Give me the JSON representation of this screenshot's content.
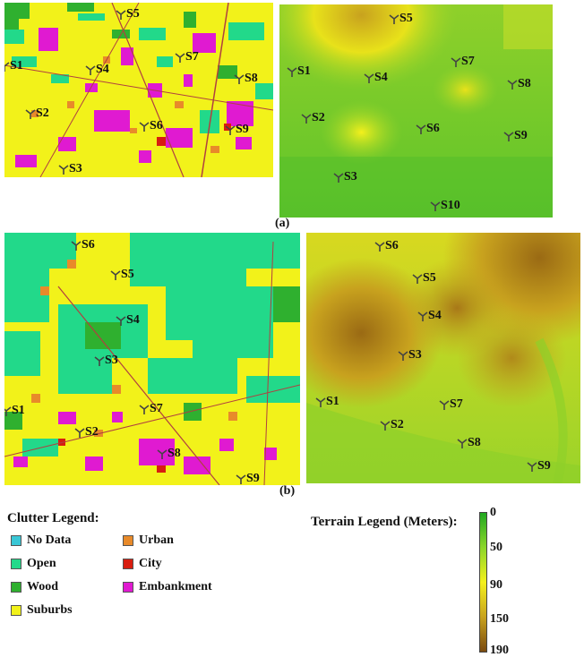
{
  "figure_labels": {
    "a": "(a)",
    "b": "(b)"
  },
  "panels": {
    "clutter_a": {
      "sites": [
        {
          "label": "S5"
        },
        {
          "label": "S1"
        },
        {
          "label": "S4"
        },
        {
          "label": "S7"
        },
        {
          "label": "S8"
        },
        {
          "label": "S2"
        },
        {
          "label": "S6"
        },
        {
          "label": "S9"
        },
        {
          "label": "S3"
        }
      ]
    },
    "terrain_a": {
      "sites": [
        {
          "label": "S5"
        },
        {
          "label": "S1"
        },
        {
          "label": "S4"
        },
        {
          "label": "S7"
        },
        {
          "label": "S8"
        },
        {
          "label": "S2"
        },
        {
          "label": "S6"
        },
        {
          "label": "S9"
        },
        {
          "label": "S3"
        },
        {
          "label": "S10"
        }
      ]
    },
    "clutter_b": {
      "sites": [
        {
          "label": "S6"
        },
        {
          "label": "S5"
        },
        {
          "label": "S4"
        },
        {
          "label": "S3"
        },
        {
          "label": "S1"
        },
        {
          "label": "S7"
        },
        {
          "label": "S2"
        },
        {
          "label": "S8"
        },
        {
          "label": "S9"
        }
      ]
    },
    "terrain_b": {
      "sites": [
        {
          "label": "S6"
        },
        {
          "label": "S5"
        },
        {
          "label": "S4"
        },
        {
          "label": "S3"
        },
        {
          "label": "S1"
        },
        {
          "label": "S7"
        },
        {
          "label": "S2"
        },
        {
          "label": "S8"
        },
        {
          "label": "S9"
        }
      ]
    }
  },
  "clutter_legend": {
    "title": "Clutter Legend:",
    "items": [
      {
        "label": "No Data",
        "color": "#39c7d6"
      },
      {
        "label": "Open",
        "color": "#22d98a"
      },
      {
        "label": "Wood",
        "color": "#2fb02f"
      },
      {
        "label": "Suburbs",
        "color": "#f2f21a"
      },
      {
        "label": "Urban",
        "color": "#e88a2a"
      },
      {
        "label": "City",
        "color": "#d81d10"
      },
      {
        "label": "Embankment",
        "color": "#e01ad1"
      }
    ]
  },
  "terrain_legend": {
    "title": "Terrain Legend (Meters):",
    "unit": "Meters",
    "ticks": [
      "0",
      "50",
      "90",
      "150",
      "190"
    ],
    "colors": [
      "#20a820",
      "#8cd62a",
      "#f4f01c",
      "#c8a21e",
      "#7a4a10"
    ]
  },
  "colors": {
    "open": "#22d98a",
    "suburbs": "#f2f21a",
    "wood": "#2fb02f",
    "urban": "#e88a2a",
    "city": "#d81d10",
    "embankment": "#e01ad1",
    "nodata": "#39c7d6",
    "terrain_low": "#5cc82a",
    "terrain_mid": "#e8e21a",
    "terrain_high": "#9a6a14"
  }
}
